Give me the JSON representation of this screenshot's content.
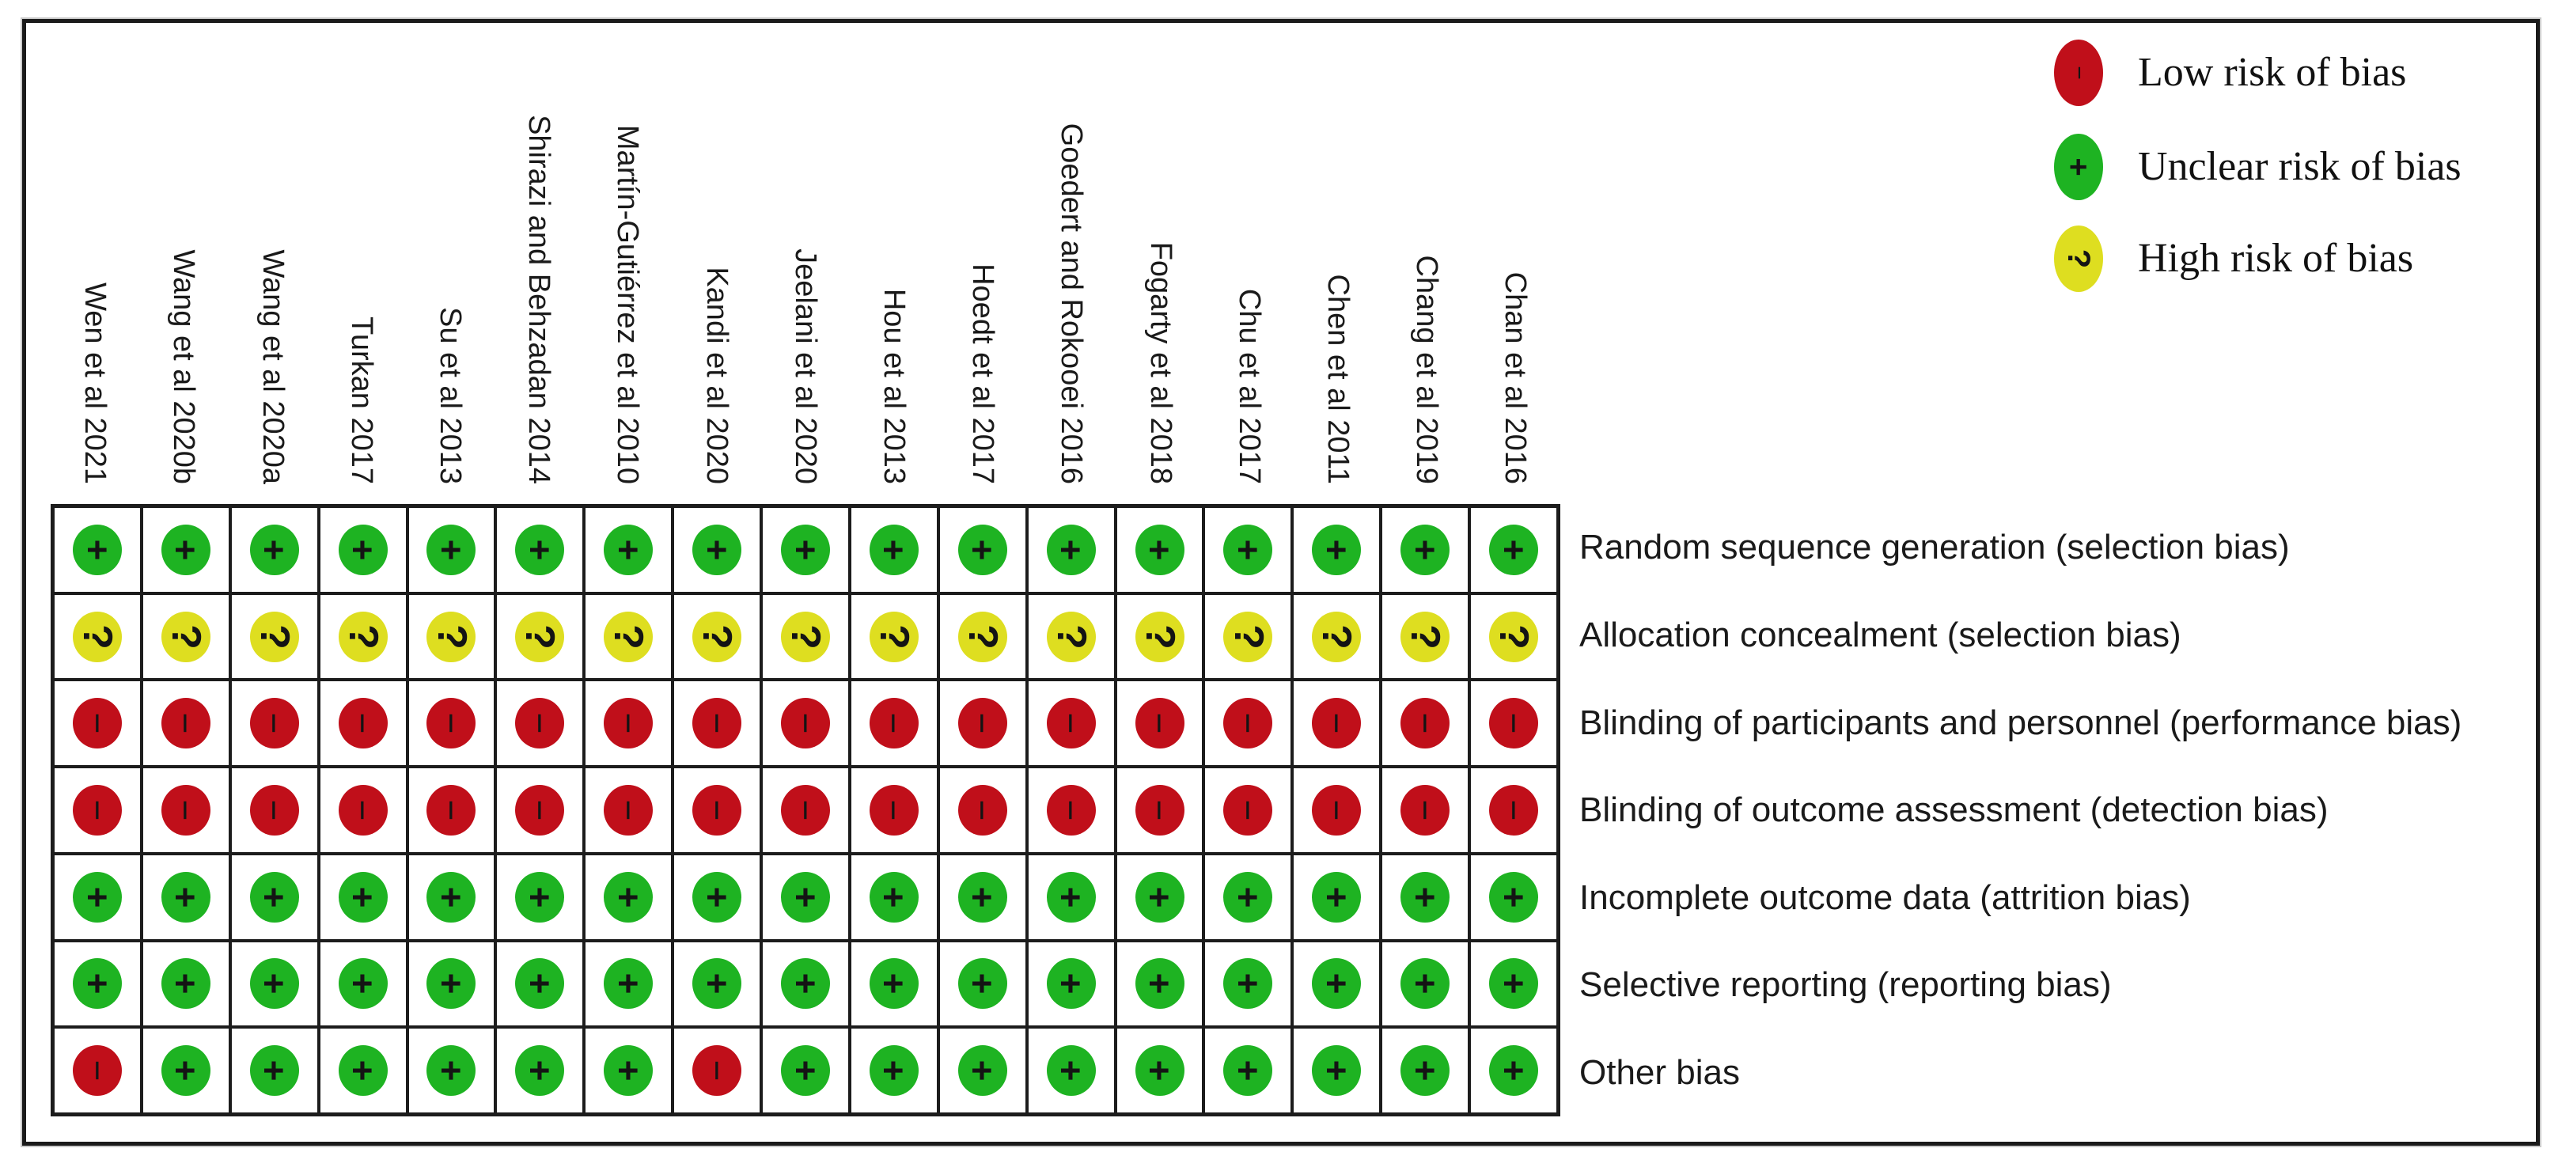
{
  "figure": {
    "kind": "risk-of-bias-summary",
    "studies": [
      "Wen et al 2021",
      "Wang et al 2020b",
      "Wang et al 2020a",
      "Turkan 2017",
      "Su et al 2013",
      "Shirazi and Behzadan 2014",
      "Martín-Gutiérrez et al 2010",
      "Kandi et al 2020",
      "Jeelani et al 2020",
      "Hou et al 2013",
      "Hoedt et al 2017",
      "Goedert and Rokooei 2016",
      "Fogarty et al 2018",
      "Chu et al 2017",
      "Chen et al 2011",
      "Chang et al 2019",
      "Chan et al 2016"
    ],
    "domains": [
      {
        "label": "Random sequence generation (selection bias)",
        "judgments": [
          "plus",
          "plus",
          "plus",
          "plus",
          "plus",
          "plus",
          "plus",
          "plus",
          "plus",
          "plus",
          "plus",
          "plus",
          "plus",
          "plus",
          "plus",
          "plus",
          "plus"
        ]
      },
      {
        "label": "Allocation concealment (selection bias)",
        "judgments": [
          "question",
          "question",
          "question",
          "question",
          "question",
          "question",
          "question",
          "question",
          "question",
          "question",
          "question",
          "question",
          "question",
          "question",
          "question",
          "question",
          "question"
        ]
      },
      {
        "label": "Blinding of participants and personnel (performance bias)",
        "judgments": [
          "minus",
          "minus",
          "minus",
          "minus",
          "minus",
          "minus",
          "minus",
          "minus",
          "minus",
          "minus",
          "minus",
          "minus",
          "minus",
          "minus",
          "minus",
          "minus",
          "minus"
        ]
      },
      {
        "label": "Blinding of outcome assessment (detection bias)",
        "judgments": [
          "minus",
          "minus",
          "minus",
          "minus",
          "minus",
          "minus",
          "minus",
          "minus",
          "minus",
          "minus",
          "minus",
          "minus",
          "minus",
          "minus",
          "minus",
          "minus",
          "minus"
        ]
      },
      {
        "label": "Incomplete outcome data (attrition bias)",
        "judgments": [
          "plus",
          "plus",
          "plus",
          "plus",
          "plus",
          "plus",
          "plus",
          "plus",
          "plus",
          "plus",
          "plus",
          "plus",
          "plus",
          "plus",
          "plus",
          "plus",
          "plus"
        ]
      },
      {
        "label": "Selective reporting (reporting bias)",
        "judgments": [
          "plus",
          "plus",
          "plus",
          "plus",
          "plus",
          "plus",
          "plus",
          "plus",
          "plus",
          "plus",
          "plus",
          "plus",
          "plus",
          "plus",
          "plus",
          "plus",
          "plus"
        ]
      },
      {
        "label": "Other bias",
        "judgments": [
          "minus",
          "plus",
          "plus",
          "plus",
          "plus",
          "plus",
          "plus",
          "minus",
          "plus",
          "plus",
          "plus",
          "plus",
          "plus",
          "plus",
          "plus",
          "plus",
          "plus"
        ]
      }
    ],
    "legend": [
      {
        "key": "minus",
        "label": "Low risk of bias"
      },
      {
        "key": "plus",
        "label": "Unclear risk of bias"
      },
      {
        "key": "question",
        "label": "High risk of bias"
      }
    ],
    "symbols": {
      "plus": "+",
      "minus": "−",
      "question": "?"
    },
    "colors": {
      "plus": "#1eb322",
      "question": "#dede20",
      "minus": "#c00f1a",
      "grid_line": "#1c1c1c",
      "text": "#1a1a1a"
    }
  },
  "chart_data": {
    "type": "heatmap",
    "title": "Risk of bias summary",
    "x_categories": [
      "Wen et al 2021",
      "Wang et al 2020b",
      "Wang et al 2020a",
      "Turkan 2017",
      "Su et al 2013",
      "Shirazi and Behzadan 2014",
      "Martín-Gutiérrez et al 2010",
      "Kandi et al 2020",
      "Jeelani et al 2020",
      "Hou et al 2013",
      "Hoedt et al 2017",
      "Goedert and Rokooei 2016",
      "Fogarty et al 2018",
      "Chu et al 2017",
      "Chen et al 2011",
      "Chang et al 2019",
      "Chan et al 2016"
    ],
    "y_categories": [
      "Random sequence generation (selection bias)",
      "Allocation concealment (selection bias)",
      "Blinding of participants and personnel (performance bias)",
      "Blinding of outcome assessment (detection bias)",
      "Incomplete outcome data (attrition bias)",
      "Selective reporting (reporting bias)",
      "Other bias"
    ],
    "values": [
      [
        "+",
        "+",
        "+",
        "+",
        "+",
        "+",
        "+",
        "+",
        "+",
        "+",
        "+",
        "+",
        "+",
        "+",
        "+",
        "+",
        "+"
      ],
      [
        "?",
        "?",
        "?",
        "?",
        "?",
        "?",
        "?",
        "?",
        "?",
        "?",
        "?",
        "?",
        "?",
        "?",
        "?",
        "?",
        "?"
      ],
      [
        "−",
        "−",
        "−",
        "−",
        "−",
        "−",
        "−",
        "−",
        "−",
        "−",
        "−",
        "−",
        "−",
        "−",
        "−",
        "−",
        "−"
      ],
      [
        "−",
        "−",
        "−",
        "−",
        "−",
        "−",
        "−",
        "−",
        "−",
        "−",
        "−",
        "−",
        "−",
        "−",
        "−",
        "−",
        "−"
      ],
      [
        "+",
        "+",
        "+",
        "+",
        "+",
        "+",
        "+",
        "+",
        "+",
        "+",
        "+",
        "+",
        "+",
        "+",
        "+",
        "+",
        "+"
      ],
      [
        "+",
        "+",
        "+",
        "+",
        "+",
        "+",
        "+",
        "+",
        "+",
        "+",
        "+",
        "+",
        "+",
        "+",
        "+",
        "+",
        "+"
      ],
      [
        "−",
        "+",
        "+",
        "+",
        "+",
        "+",
        "+",
        "−",
        "+",
        "+",
        "+",
        "+",
        "+",
        "+",
        "+",
        "+",
        "+"
      ]
    ],
    "legend": [
      {
        "symbol": "−",
        "color": "#c00f1a",
        "label": "Low risk of bias"
      },
      {
        "symbol": "+",
        "color": "#1eb322",
        "label": "Unclear risk of bias"
      },
      {
        "symbol": "?",
        "color": "#dede20",
        "label": "High risk of bias"
      }
    ],
    "legend_position": "top-right",
    "grid": true
  }
}
